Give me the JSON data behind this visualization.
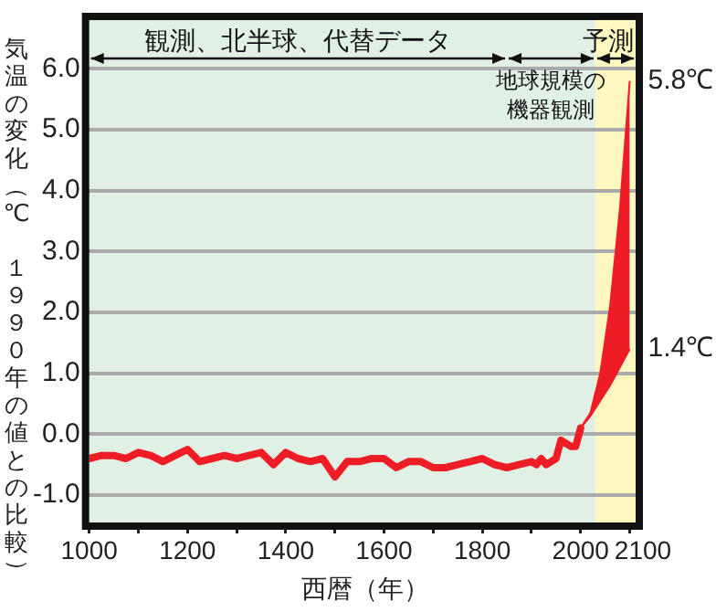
{
  "chart_data": {
    "type": "line",
    "xlabel": "西暦（年）",
    "ylabel": "気温の変化（℃　１９９０年の値との比較）",
    "xlim": [
      1000,
      2112
    ],
    "xticks": [
      1000,
      {
        "value": 1100,
        "label": null
      },
      1200,
      {
        "value": 1300,
        "label": null
      },
      1400,
      {
        "value": 1500,
        "label": null
      },
      1600,
      {
        "value": 1700,
        "label": null
      },
      1800,
      {
        "value": 1900,
        "label": null
      },
      2000,
      2100
    ],
    "ylim": [
      -1.45,
      6.8
    ],
    "yticks": [
      {
        "value": -1,
        "label": "-1.0"
      },
      {
        "value": 0,
        "label": "0.0"
      },
      {
        "value": 1,
        "label": "1.0"
      },
      {
        "value": 2,
        "label": "2.0"
      },
      {
        "value": 3,
        "label": "3.0"
      },
      {
        "value": 4,
        "label": "4.0"
      },
      {
        "value": 5,
        "label": "5.0"
      },
      {
        "value": 6,
        "label": "6.0"
      }
    ],
    "grid": "y",
    "legend": false,
    "series": [
      {
        "color": "#ee1c25",
        "x": [
          1000,
          1025,
          1050,
          1075,
          1100,
          1125,
          1150,
          1175,
          1200,
          1225,
          1250,
          1275,
          1300,
          1325,
          1350,
          1375,
          1400,
          1425,
          1450,
          1475,
          1500,
          1525,
          1550,
          1575,
          1600,
          1625,
          1650,
          1675,
          1700,
          1725,
          1750,
          1775,
          1800,
          1825,
          1850,
          1875,
          1900,
          1910,
          1920,
          1930,
          1940,
          1950,
          1960,
          1970,
          1980,
          1990,
          2000
        ],
        "values": [
          -0.4,
          -0.35,
          -0.35,
          -0.4,
          -0.3,
          -0.35,
          -0.45,
          -0.35,
          -0.25,
          -0.45,
          -0.4,
          -0.35,
          -0.4,
          -0.35,
          -0.3,
          -0.5,
          -0.3,
          -0.4,
          -0.45,
          -0.4,
          -0.7,
          -0.45,
          -0.45,
          -0.4,
          -0.4,
          -0.55,
          -0.45,
          -0.45,
          -0.55,
          -0.55,
          -0.5,
          -0.45,
          -0.4,
          -0.5,
          -0.55,
          -0.5,
          -0.45,
          -0.5,
          -0.4,
          -0.5,
          -0.45,
          -0.4,
          -0.1,
          -0.15,
          -0.2,
          -0.2,
          0.1
        ]
      },
      {
        "color": "#ee1c25",
        "x": [
          2000,
          2020,
          2040,
          2060,
          2080,
          2100
        ],
        "values": [
          null,
          null,
          null,
          null,
          null,
          null
        ],
        "lower": [
          0.1,
          0.3,
          0.55,
          0.8,
          1.1,
          1.4
        ],
        "upper": [
          0.1,
          0.35,
          1.0,
          2.1,
          3.7,
          5.8
        ]
      }
    ],
    "bands": [
      {
        "axis": "x",
        "from": 1000,
        "to": 1850,
        "label": "観測、北半球、代替データ",
        "color": "#e0f0e4"
      },
      {
        "axis": "x",
        "from": 1850,
        "to": 2030,
        "label": "地球規模の機器観測",
        "color": "#e0f0e4"
      },
      {
        "axis": "x",
        "from": 2030,
        "to": 2112,
        "label": "予測",
        "color": "#fff7c0"
      }
    ],
    "annotations": [
      {
        "text": "5.8℃",
        "x": 2100,
        "y": 5.8
      },
      {
        "text": "1.4℃",
        "x": 2100,
        "y": 1.4
      }
    ]
  }
}
